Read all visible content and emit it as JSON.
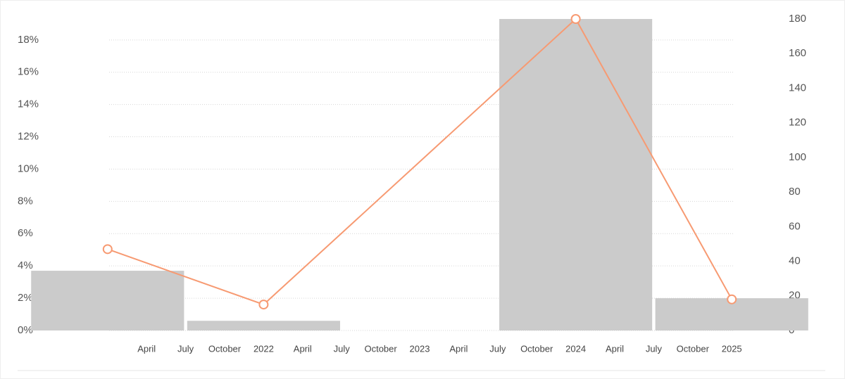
{
  "chart_data": {
    "type": "bar-line",
    "x": [
      2021,
      2022,
      2024,
      2025
    ],
    "xlim": [
      2020.5,
      2025.5
    ],
    "xticks": [
      {
        "value": 2021.25,
        "label": "April"
      },
      {
        "value": 2021.5,
        "label": "July"
      },
      {
        "value": 2021.75,
        "label": "October"
      },
      2022,
      {
        "value": 2022.25,
        "label": "April"
      },
      {
        "value": 2022.5,
        "label": "July"
      },
      {
        "value": 2022.75,
        "label": "October"
      },
      2023,
      {
        "value": 2023.25,
        "label": "April"
      },
      {
        "value": 2023.5,
        "label": "July"
      },
      {
        "value": 2023.75,
        "label": "October"
      },
      2024,
      {
        "value": 2024.25,
        "label": "April"
      },
      {
        "value": 2024.5,
        "label": "July"
      },
      {
        "value": 2024.75,
        "label": "October"
      },
      2025
    ],
    "ylim": [
      0,
      19.3
    ],
    "yticks": [
      {
        "value": 0,
        "label": "0%"
      },
      {
        "value": 2,
        "label": "2%"
      },
      {
        "value": 4,
        "label": "4%"
      },
      {
        "value": 6,
        "label": "6%"
      },
      {
        "value": 8,
        "label": "8%"
      },
      {
        "value": 10,
        "label": "10%"
      },
      {
        "value": 12,
        "label": "12%"
      },
      {
        "value": 14,
        "label": "14%"
      },
      {
        "value": 16,
        "label": "16%"
      },
      {
        "value": 18,
        "label": "18%"
      }
    ],
    "y2lim": [
      0,
      180
    ],
    "y2ticks": [
      0,
      20,
      40,
      60,
      80,
      100,
      120,
      140,
      160,
      180
    ],
    "grid": true,
    "series": [
      {
        "kind": "bar",
        "color": "#cbcbcb",
        "values": [
          3.7,
          0.6,
          19.3,
          2.0
        ]
      },
      {
        "kind": "line",
        "axis": "y2",
        "color": "#f79a72",
        "values": [
          47,
          15,
          180,
          18
        ]
      }
    ]
  }
}
